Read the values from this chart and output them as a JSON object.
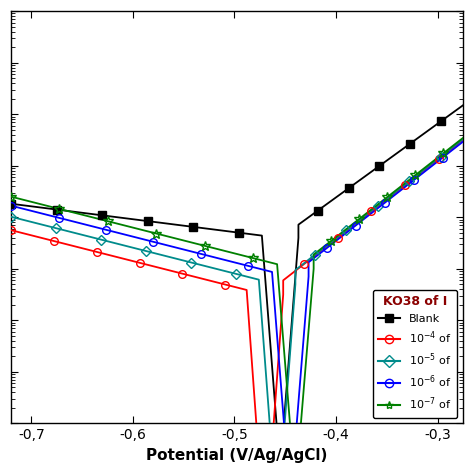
{
  "xlabel": "Potential (V/Ag/AgCl)",
  "background_color": "#ffffff",
  "legend_title": "KO38 of I",
  "xlim": [
    -0.72,
    -0.27
  ],
  "x_ticks": [
    -0.7,
    -0.6,
    -0.5,
    -0.4,
    -0.3
  ],
  "colors": [
    "black",
    "red",
    "#008B8B",
    "blue",
    "green"
  ],
  "markers": [
    "s",
    "o",
    "D",
    "o",
    "*"
  ],
  "marker_faces": [
    "black",
    "none",
    "none",
    "none",
    "none"
  ],
  "labels": [
    "Blank",
    "10^{-4} of",
    "10^{-5} of",
    "10^{-6} of",
    "10^{-7} of"
  ],
  "series_params": [
    {
      "Ecorr": -0.455,
      "icorr": -5.5,
      "ba": 8.0,
      "bc": 0.8
    },
    {
      "Ecorr": -0.47,
      "icorr": -6.5,
      "ba": 9.0,
      "bc": 1.2
    },
    {
      "Ecorr": -0.458,
      "icorr": -6.3,
      "ba": 8.5,
      "bc": 1.1
    },
    {
      "Ecorr": -0.445,
      "icorr": -6.2,
      "ba": 8.2,
      "bc": 1.0
    },
    {
      "Ecorr": -0.44,
      "icorr": -6.0,
      "ba": 8.0,
      "bc": 0.95
    }
  ]
}
